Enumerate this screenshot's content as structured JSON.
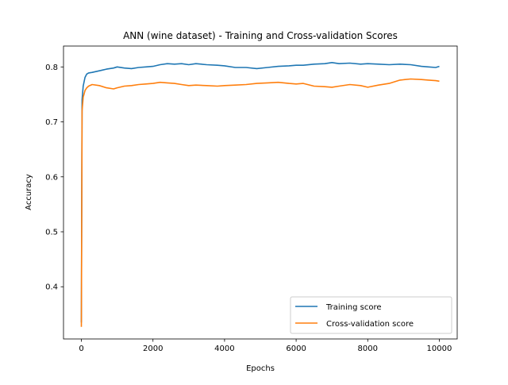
{
  "chart_data": {
    "type": "line",
    "title": "ANN (wine dataset) - Training and Cross-validation Scores",
    "xlabel": "Epochs",
    "ylabel": "Accuracy",
    "xlim": [
      -500,
      10500
    ],
    "ylim": [
      0.305,
      0.838
    ],
    "xticks": [
      0,
      2000,
      4000,
      6000,
      8000,
      10000
    ],
    "xtick_labels": [
      "0",
      "2000",
      "4000",
      "6000",
      "8000",
      "10000"
    ],
    "yticks": [
      0.4,
      0.5,
      0.6,
      0.7,
      0.8
    ],
    "ytick_labels": [
      "0.4",
      "0.5",
      "0.6",
      "0.7",
      "0.8"
    ],
    "grid": false,
    "legend_position": "lower-right",
    "series": [
      {
        "name": "Training score",
        "color": "#1f77b4",
        "x": [
          0,
          20,
          50,
          100,
          150,
          200,
          300,
          500,
          700,
          900,
          1000,
          1200,
          1400,
          1600,
          1800,
          2000,
          2200,
          2400,
          2600,
          2800,
          3000,
          3200,
          3500,
          3800,
          4000,
          4300,
          4600,
          4900,
          5200,
          5500,
          5800,
          6000,
          6200,
          6500,
          6800,
          7000,
          7200,
          7500,
          7800,
          8000,
          8300,
          8600,
          8900,
          9200,
          9500,
          9700,
          9900,
          10000
        ],
        "y": [
          0.335,
          0.74,
          0.765,
          0.781,
          0.787,
          0.789,
          0.79,
          0.793,
          0.796,
          0.798,
          0.8,
          0.798,
          0.797,
          0.799,
          0.8,
          0.801,
          0.804,
          0.806,
          0.805,
          0.806,
          0.804,
          0.806,
          0.804,
          0.803,
          0.802,
          0.799,
          0.799,
          0.797,
          0.799,
          0.801,
          0.802,
          0.803,
          0.803,
          0.805,
          0.806,
          0.808,
          0.806,
          0.807,
          0.805,
          0.806,
          0.805,
          0.804,
          0.805,
          0.804,
          0.801,
          0.8,
          0.799,
          0.801
        ]
      },
      {
        "name": "Cross-validation score",
        "color": "#ff7f0e",
        "x": [
          0,
          20,
          50,
          100,
          150,
          200,
          300,
          500,
          700,
          900,
          1000,
          1200,
          1400,
          1600,
          1800,
          2000,
          2200,
          2400,
          2600,
          2800,
          3000,
          3200,
          3500,
          3800,
          4000,
          4300,
          4600,
          4900,
          5200,
          5500,
          5800,
          6000,
          6200,
          6500,
          6800,
          7000,
          7200,
          7500,
          7800,
          8000,
          8300,
          8600,
          8900,
          9200,
          9500,
          9700,
          9900,
          10000
        ],
        "y": [
          0.327,
          0.72,
          0.745,
          0.757,
          0.762,
          0.765,
          0.768,
          0.766,
          0.762,
          0.76,
          0.762,
          0.765,
          0.766,
          0.768,
          0.769,
          0.77,
          0.772,
          0.771,
          0.77,
          0.768,
          0.766,
          0.767,
          0.766,
          0.765,
          0.766,
          0.767,
          0.768,
          0.77,
          0.771,
          0.772,
          0.77,
          0.769,
          0.77,
          0.765,
          0.764,
          0.763,
          0.765,
          0.768,
          0.766,
          0.763,
          0.767,
          0.77,
          0.776,
          0.778,
          0.777,
          0.776,
          0.775,
          0.774
        ]
      }
    ]
  }
}
